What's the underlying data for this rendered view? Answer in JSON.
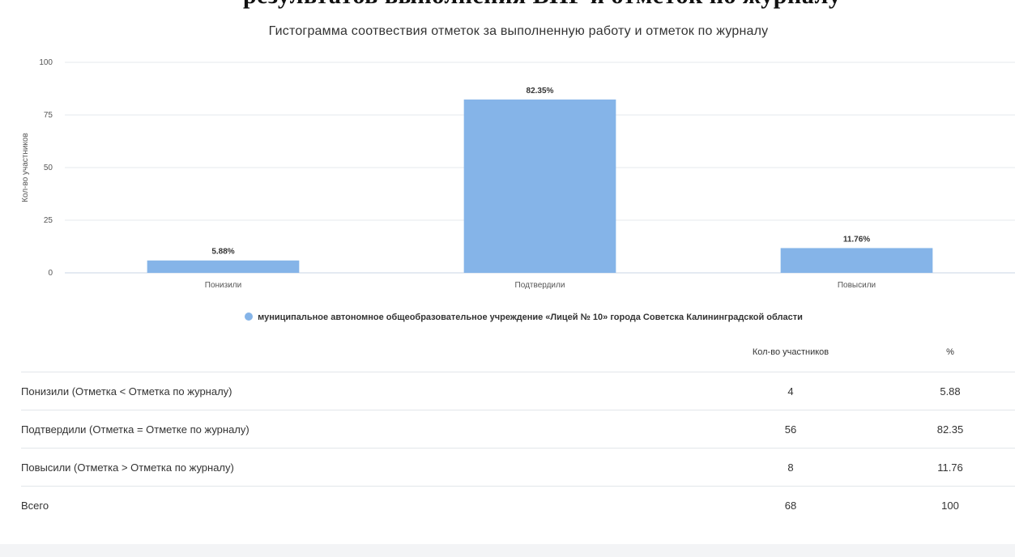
{
  "header_fragment": "результатов выполнения ВПР и отметок по журналу",
  "chart_data": {
    "type": "bar",
    "title": "Гистограмма соотвествия отметок за выполненную работу и отметок по журналу",
    "ylabel": "Кол-во участников",
    "xlabel": "",
    "ylim": [
      0,
      100
    ],
    "yticks": [
      "0",
      "25",
      "50",
      "75",
      "100"
    ],
    "categories": [
      "Понизили",
      "Подтвердили",
      "Повысили"
    ],
    "series": [
      {
        "name": "муниципальное автономное общеобразовательное учреждение «Лицей № 10» города Советска Калининградской области",
        "values": [
          5.88,
          82.35,
          11.76
        ],
        "labels": [
          "5.88%",
          "82.35%",
          "11.76%"
        ]
      }
    ],
    "bar_color": "#85b4e8",
    "grid": true,
    "legend_position": "bottom"
  },
  "table": {
    "headers": [
      "",
      "Кол-во участников",
      "%"
    ],
    "rows": [
      {
        "label": "Понизили (Отметка < Отметка по журналу)",
        "count": "4",
        "pct": "5.88"
      },
      {
        "label": "Подтвердили (Отметка = Отметке по журналу)",
        "count": "56",
        "pct": "82.35"
      },
      {
        "label": "Повысили (Отметка > Отметка по журналу)",
        "count": "8",
        "pct": "11.76"
      },
      {
        "label": "Всего",
        "count": "68",
        "pct": "100"
      }
    ]
  }
}
